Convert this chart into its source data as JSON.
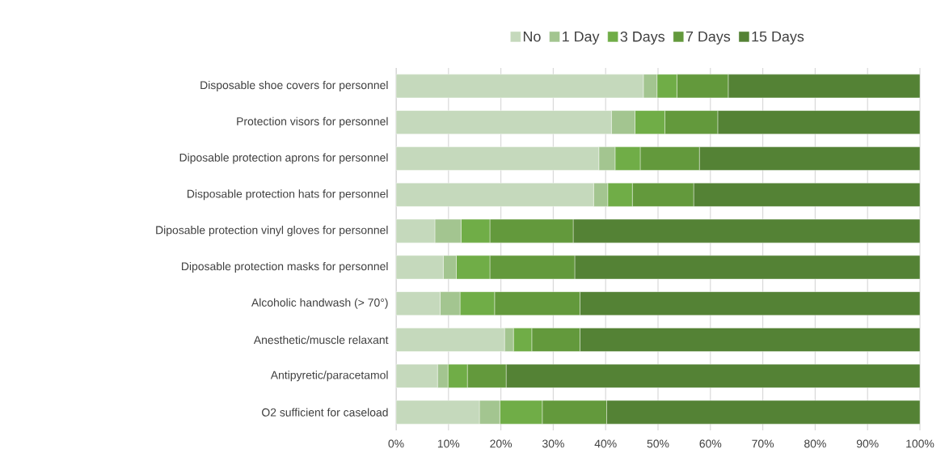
{
  "chart_data": {
    "type": "bar",
    "orientation": "horizontal",
    "stacked": true,
    "legend": "top",
    "grid": "x",
    "categories": [
      "Disposable shoe covers for personnel",
      "Protection visors for personnel",
      "Diposable protection aprons for personnel",
      "Disposable protection hats for personnel",
      "Diposable protection vinyl gloves for personnel",
      "Diposable protection masks for personnel",
      "Alcoholic handwash (> 70°)",
      "Anesthetic/muscle relaxant",
      "Antipyretic/paracetamol",
      "O2 sufficient for caseload"
    ],
    "series": [
      {
        "name": "No",
        "color": "#c5d9bc",
        "values": [
          47.2,
          41.1,
          38.7,
          37.7,
          7.4,
          9.0,
          8.4,
          20.7,
          7.9,
          15.9
        ]
      },
      {
        "name": "1 Day",
        "color": "#a3c590",
        "values": [
          2.6,
          4.5,
          3.1,
          2.7,
          5.0,
          2.5,
          3.8,
          1.7,
          2.0,
          3.9
        ]
      },
      {
        "name": "3 Days",
        "color": "#70ad47",
        "values": [
          3.8,
          5.7,
          4.8,
          4.7,
          5.5,
          6.4,
          6.6,
          3.5,
          3.7,
          8.1
        ]
      },
      {
        "name": "7 Days",
        "color": "#63993c",
        "values": [
          9.8,
          10.1,
          11.3,
          11.7,
          15.9,
          16.2,
          16.3,
          9.2,
          7.4,
          12.3
        ]
      },
      {
        "name": "15 Days",
        "color": "#548235",
        "values": [
          36.6,
          38.6,
          42.1,
          43.2,
          66.2,
          65.9,
          64.9,
          64.9,
          79.0,
          59.8
        ]
      }
    ],
    "xlim": [
      0,
      100
    ],
    "xticks": [
      {
        "value": 0,
        "label": "0%"
      },
      {
        "value": 10,
        "label": "10%"
      },
      {
        "value": 20,
        "label": "20%"
      },
      {
        "value": 30,
        "label": "30%"
      },
      {
        "value": 40,
        "label": "40%"
      },
      {
        "value": 50,
        "label": "50%"
      },
      {
        "value": 60,
        "label": "60%"
      },
      {
        "value": 70,
        "label": "70%"
      },
      {
        "value": 80,
        "label": "80%"
      },
      {
        "value": 90,
        "label": "90%"
      },
      {
        "value": 100,
        "label": "100%"
      }
    ]
  }
}
